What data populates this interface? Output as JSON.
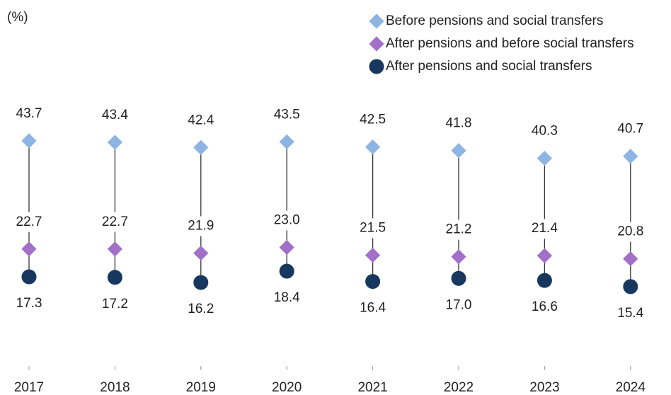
{
  "chart_data": {
    "type": "dot",
    "y_label": "(%)",
    "categories": [
      "2017",
      "2018",
      "2019",
      "2020",
      "2021",
      "2022",
      "2023",
      "2024"
    ],
    "series": [
      {
        "name": "Before pensions and social transfers",
        "color": "#8db4e2",
        "marker": "diamond",
        "values": [
          43.7,
          43.4,
          42.4,
          43.5,
          42.5,
          41.8,
          40.3,
          40.7
        ]
      },
      {
        "name": "After pensions and before social transfers",
        "color": "#a26fc9",
        "marker": "diamond",
        "values": [
          22.7,
          22.7,
          21.9,
          23.0,
          21.5,
          21.2,
          21.4,
          20.8
        ],
        "value_labels": [
          "22.7",
          "22.7",
          "21.9",
          "23.0",
          "21.5",
          "21.2",
          "21.4",
          "20.8"
        ]
      },
      {
        "name": "After pensions and social transfers",
        "color": "#17375e",
        "marker": "circle",
        "values": [
          17.3,
          17.2,
          16.2,
          18.4,
          16.4,
          17.0,
          16.6,
          15.4
        ],
        "value_labels": [
          "17.3",
          "17.2",
          "16.2",
          "18.4",
          "16.4",
          "17.0",
          "16.6",
          "15.4"
        ]
      }
    ],
    "legend": "top-right"
  }
}
